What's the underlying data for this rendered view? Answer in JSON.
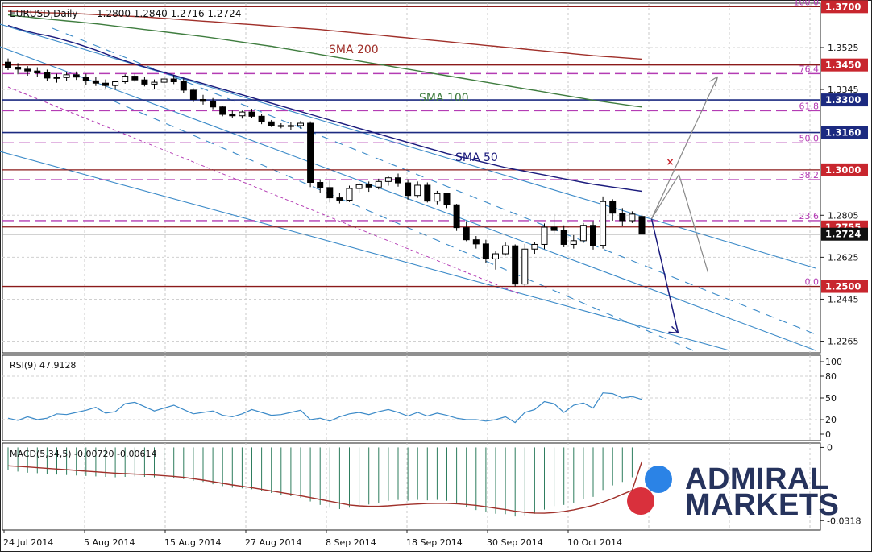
{
  "header": {
    "symbol": "EURUSD,Daily",
    "ohlc": "1.2800 1.2840 1.2716 1.2724"
  },
  "logo": {
    "line1": "ADMIRAL",
    "line2": "MARKETS",
    "dot_top_color": "#2b83e6",
    "dot_bottom_color": "#d9303c"
  },
  "colors": {
    "candle": "#000000",
    "sma50": "#1a1a7c",
    "sma100": "#3f7d3f",
    "sma200": "#a0302a",
    "fib": "#b43cb4",
    "support_resistance": "#8b1a1a",
    "navy_levels": "#1c2a80",
    "channel": "#3b8ac8",
    "rsi": "#3b8ac8",
    "macd_signal": "#a0302a",
    "macd_hist": "#2e7d5e",
    "label_red": "#c8262e",
    "label_blue": "#1c2a80",
    "label_dark": "#111111"
  },
  "chart_data": [
    {
      "type": "candlestick",
      "title": "EURUSD,Daily",
      "x_labels": [
        "24 Jul 2014",
        "5 Aug 2014",
        "15 Aug 2014",
        "27 Aug 2014",
        "8 Sep 2014",
        "18 Sep 2014",
        "30 Sep 2014",
        "10 Oct 2014"
      ],
      "price_ticks": [
        "1.3525",
        "1.3345",
        "1.2805",
        "1.2625",
        "1.2445",
        "1.2265"
      ],
      "ylim": [
        1.2215,
        1.3715
      ],
      "candles": [
        [
          1.3462,
          1.3478,
          1.3428,
          1.344
        ],
        [
          1.344,
          1.3458,
          1.341,
          1.3432
        ],
        [
          1.3432,
          1.3445,
          1.3404,
          1.3424
        ],
        [
          1.3424,
          1.344,
          1.3398,
          1.3416
        ],
        [
          1.3416,
          1.343,
          1.338,
          1.3394
        ],
        [
          1.3394,
          1.3412,
          1.3374,
          1.3396
        ],
        [
          1.3396,
          1.342,
          1.338,
          1.3408
        ],
        [
          1.3408,
          1.3422,
          1.3386,
          1.3398
        ],
        [
          1.3398,
          1.3412,
          1.3366,
          1.3382
        ],
        [
          1.3382,
          1.34,
          1.336,
          1.3372
        ],
        [
          1.3372,
          1.3388,
          1.335,
          1.3362
        ],
        [
          1.3362,
          1.3382,
          1.3344,
          1.3378
        ],
        [
          1.3378,
          1.341,
          1.337,
          1.3402
        ],
        [
          1.3402,
          1.3412,
          1.3378,
          1.3386
        ],
        [
          1.3386,
          1.34,
          1.3358,
          1.3368
        ],
        [
          1.3368,
          1.3388,
          1.3348,
          1.3376
        ],
        [
          1.3376,
          1.3398,
          1.3362,
          1.339
        ],
        [
          1.339,
          1.3406,
          1.3368,
          1.3378
        ],
        [
          1.3378,
          1.3392,
          1.333,
          1.3342
        ],
        [
          1.3342,
          1.335,
          1.329,
          1.3302
        ],
        [
          1.3302,
          1.3322,
          1.328,
          1.3294
        ],
        [
          1.3294,
          1.3308,
          1.326,
          1.327
        ],
        [
          1.327,
          1.3276,
          1.323,
          1.3238
        ],
        [
          1.3238,
          1.3254,
          1.3222,
          1.3232
        ],
        [
          1.3232,
          1.3254,
          1.322,
          1.3248
        ],
        [
          1.3248,
          1.3262,
          1.3222,
          1.323
        ],
        [
          1.323,
          1.324,
          1.3196,
          1.3206
        ],
        [
          1.3206,
          1.3214,
          1.3184,
          1.319
        ],
        [
          1.319,
          1.32,
          1.3178,
          1.3186
        ],
        [
          1.3186,
          1.3204,
          1.3172,
          1.319
        ],
        [
          1.319,
          1.321,
          1.3176,
          1.32
        ],
        [
          1.32,
          1.3208,
          1.2926,
          1.2946
        ],
        [
          1.2946,
          1.296,
          1.29,
          1.2924
        ],
        [
          1.2924,
          1.2954,
          1.286,
          1.288
        ],
        [
          1.288,
          1.29,
          1.2856,
          1.287
        ],
        [
          1.287,
          1.2932,
          1.2862,
          1.292
        ],
        [
          1.292,
          1.2946,
          1.29,
          1.2936
        ],
        [
          1.2936,
          1.295,
          1.2906,
          1.2926
        ],
        [
          1.2926,
          1.2962,
          1.2916,
          1.295
        ],
        [
          1.295,
          1.2974,
          1.2932,
          1.2966
        ],
        [
          1.2966,
          1.2984,
          1.2928,
          1.2944
        ],
        [
          1.2944,
          1.296,
          1.2872,
          1.289
        ],
        [
          1.289,
          1.295,
          1.288,
          1.2934
        ],
        [
          1.2934,
          1.2946,
          1.286,
          1.2866
        ],
        [
          1.2866,
          1.291,
          1.2852,
          1.2898
        ],
        [
          1.2898,
          1.2902,
          1.2836,
          1.285
        ],
        [
          1.285,
          1.2854,
          1.2738,
          1.2752
        ],
        [
          1.2752,
          1.278,
          1.2694,
          1.27
        ],
        [
          1.27,
          1.2716,
          1.2662,
          1.2682
        ],
        [
          1.2682,
          1.27,
          1.26,
          1.2618
        ],
        [
          1.2618,
          1.265,
          1.2572,
          1.264
        ],
        [
          1.264,
          1.2688,
          1.2632,
          1.2674
        ],
        [
          1.2674,
          1.268,
          1.25,
          1.251
        ],
        [
          1.251,
          1.2682,
          1.25,
          1.266
        ],
        [
          1.266,
          1.269,
          1.264,
          1.268
        ],
        [
          1.268,
          1.277,
          1.266,
          1.2754
        ],
        [
          1.2754,
          1.281,
          1.2728,
          1.274
        ],
        [
          1.274,
          1.2762,
          1.2668,
          1.268
        ],
        [
          1.268,
          1.272,
          1.2662,
          1.2696
        ],
        [
          1.2696,
          1.2772,
          1.2686,
          1.2762
        ],
        [
          1.2762,
          1.278,
          1.2658,
          1.2676
        ],
        [
          1.2676,
          1.2886,
          1.2662,
          1.2864
        ],
        [
          1.2864,
          1.2874,
          1.2782,
          1.2814
        ],
        [
          1.2814,
          1.2836,
          1.2758,
          1.2782
        ],
        [
          1.2782,
          1.2822,
          1.2772,
          1.281
        ],
        [
          1.28,
          1.284,
          1.2716,
          1.2724
        ]
      ],
      "series": [
        {
          "name": "SMA 50",
          "values": [
            1.362,
            1.3606,
            1.3594,
            1.3584,
            1.3576,
            1.3566,
            1.3554,
            1.3542,
            1.3528,
            1.3514,
            1.3498,
            1.3482,
            1.3468,
            1.3454,
            1.3442,
            1.343,
            1.3418,
            1.3406,
            1.3394,
            1.3382,
            1.337,
            1.3358,
            1.3346,
            1.3334,
            1.3322,
            1.331,
            1.3298,
            1.3286,
            1.3274,
            1.3262,
            1.325,
            1.3238,
            1.3226,
            1.3214,
            1.3202,
            1.319,
            1.3178,
            1.3166,
            1.3154,
            1.3142,
            1.313,
            1.3118,
            1.3106,
            1.3094,
            1.3082,
            1.307,
            1.306,
            1.305,
            1.304,
            1.303,
            1.302,
            1.301,
            1.3002,
            1.2994,
            1.2986,
            1.2978,
            1.297,
            1.2962,
            1.2954,
            1.2946,
            1.2938,
            1.2932,
            1.2926,
            1.292,
            1.2914,
            1.2908
          ]
        },
        {
          "name": "SMA 100",
          "values": [
            1.3665,
            1.366,
            1.3656,
            1.3651,
            1.3647,
            1.3643,
            1.3639,
            1.3635,
            1.3631,
            1.3627,
            1.3622,
            1.3617,
            1.3612,
            1.3607,
            1.3602,
            1.3597,
            1.3592,
            1.3587,
            1.3582,
            1.3577,
            1.3572,
            1.3566,
            1.356,
            1.3554,
            1.3548,
            1.3542,
            1.3536,
            1.353,
            1.3523,
            1.3516,
            1.3509,
            1.3502,
            1.3495,
            1.3488,
            1.3481,
            1.3474,
            1.3467,
            1.346,
            1.3453,
            1.3446,
            1.3439,
            1.3432,
            1.3425,
            1.3418,
            1.3411,
            1.3404,
            1.3397,
            1.339,
            1.3383,
            1.3376,
            1.3369,
            1.3362,
            1.3355,
            1.3348,
            1.3341,
            1.3334,
            1.3327,
            1.332,
            1.3313,
            1.3306,
            1.3299,
            1.3293,
            1.3287,
            1.3281,
            1.3275,
            1.327
          ]
        },
        {
          "name": "SMA 200",
          "values": [
            1.368,
            1.3679,
            1.3677,
            1.3676,
            1.3674,
            1.3673,
            1.3671,
            1.367,
            1.3668,
            1.3666,
            1.3664,
            1.3662,
            1.366,
            1.3658,
            1.3656,
            1.3653,
            1.365,
            1.3647,
            1.3644,
            1.3641,
            1.3638,
            1.3635,
            1.3632,
            1.3629,
            1.3626,
            1.3623,
            1.362,
            1.3617,
            1.3614,
            1.3611,
            1.3608,
            1.3605,
            1.3602,
            1.3598,
            1.3594,
            1.359,
            1.3586,
            1.3582,
            1.3578,
            1.3574,
            1.357,
            1.3566,
            1.3562,
            1.3558,
            1.3554,
            1.355,
            1.3546,
            1.3542,
            1.3538,
            1.3534,
            1.353,
            1.3526,
            1.3522,
            1.3518,
            1.3514,
            1.351,
            1.3506,
            1.3502,
            1.3498,
            1.3494,
            1.349,
            1.3487,
            1.3484,
            1.3481,
            1.3478,
            1.3475
          ]
        }
      ],
      "levels": [
        {
          "price": 1.37,
          "label": "1.3700",
          "kind": "resistance"
        },
        {
          "price": 1.345,
          "label": "1.3450",
          "kind": "resistance"
        },
        {
          "price": 1.33,
          "label": "1.3300",
          "kind": "navy"
        },
        {
          "price": 1.316,
          "label": "1.3160",
          "kind": "navy"
        },
        {
          "price": 1.3,
          "label": "1.3000",
          "kind": "resistance"
        },
        {
          "price": 1.2755,
          "label": "1.2755",
          "kind": "resistance"
        },
        {
          "price": 1.2724,
          "label": "1.2724",
          "kind": "current"
        },
        {
          "price": 1.25,
          "label": "1.2500",
          "kind": "support"
        }
      ],
      "fibonacci": [
        {
          "label": "100.0",
          "price": 1.37
        },
        {
          "label": "76.4",
          "price": 1.3413
        },
        {
          "label": "61.8",
          "price": 1.3254
        },
        {
          "label": "50.0",
          "price": 1.3116
        },
        {
          "label": "38.2",
          "price": 1.2958
        },
        {
          "label": "23.6",
          "price": 1.2782
        },
        {
          "label": "0.0",
          "price": 1.25
        }
      ],
      "annotations": [
        "SMA 200",
        "SMA 100",
        "SMA 50"
      ]
    },
    {
      "type": "line",
      "title": "RSI(9) 47.9128",
      "ylim": [
        0,
        100
      ],
      "y_ticks": [
        "100",
        "80",
        "50",
        "20",
        "0"
      ],
      "series": [
        {
          "name": "RSI(9)",
          "values": [
            22,
            19,
            24,
            20,
            22,
            28,
            27,
            30,
            33,
            37,
            29,
            31,
            42,
            44,
            38,
            32,
            36,
            40,
            34,
            28,
            30,
            32,
            26,
            24,
            28,
            34,
            30,
            26,
            27,
            30,
            33,
            20,
            22,
            18,
            24,
            28,
            30,
            27,
            31,
            34,
            30,
            25,
            30,
            25,
            29,
            26,
            22,
            20,
            20,
            18,
            20,
            24,
            16,
            30,
            34,
            45,
            42,
            30,
            40,
            43,
            36,
            57,
            56,
            50,
            52,
            48
          ]
        }
      ]
    },
    {
      "type": "bar",
      "title": "MACD(5,34,5) -0.00720 -0.00614",
      "y_ticks": [
        "0",
        "-0.0318"
      ],
      "ylim": [
        -0.0345,
        0.0005
      ],
      "series": [
        {
          "name": "MACD(5,34,5)",
          "values": [
            -0.01,
            -0.0105,
            -0.011,
            -0.0112,
            -0.0115,
            -0.0118,
            -0.012,
            -0.0122,
            -0.0124,
            -0.0126,
            -0.0128,
            -0.013,
            -0.0128,
            -0.0126,
            -0.0128,
            -0.013,
            -0.0132,
            -0.0134,
            -0.0138,
            -0.0145,
            -0.015,
            -0.016,
            -0.0168,
            -0.0175,
            -0.0178,
            -0.0182,
            -0.019,
            -0.0198,
            -0.0205,
            -0.0212,
            -0.0218,
            -0.0235,
            -0.025,
            -0.0262,
            -0.0268,
            -0.0262,
            -0.0255,
            -0.0248,
            -0.024,
            -0.0232,
            -0.0228,
            -0.0232,
            -0.0228,
            -0.023,
            -0.0228,
            -0.0232,
            -0.0245,
            -0.026,
            -0.0272,
            -0.0282,
            -0.0288,
            -0.029,
            -0.03,
            -0.0295,
            -0.0288,
            -0.027,
            -0.0255,
            -0.025,
            -0.024,
            -0.0225,
            -0.0215,
            -0.0185,
            -0.0165,
            -0.015,
            -0.013,
            -0.0072
          ]
        },
        {
          "name": "Signal",
          "values": [
            -0.008,
            -0.0082,
            -0.0085,
            -0.0088,
            -0.0091,
            -0.0094,
            -0.0097,
            -0.01,
            -0.0103,
            -0.0106,
            -0.0109,
            -0.0112,
            -0.0114,
            -0.0116,
            -0.0118,
            -0.012,
            -0.0123,
            -0.0126,
            -0.013,
            -0.0136,
            -0.0142,
            -0.0149,
            -0.0156,
            -0.0163,
            -0.0169,
            -0.0175,
            -0.0182,
            -0.0189,
            -0.0196,
            -0.0203,
            -0.021,
            -0.0218,
            -0.0226,
            -0.0234,
            -0.0242,
            -0.025,
            -0.0254,
            -0.0256,
            -0.0256,
            -0.0254,
            -0.0251,
            -0.0248,
            -0.0246,
            -0.0244,
            -0.0243,
            -0.0243,
            -0.0245,
            -0.0248,
            -0.0252,
            -0.0258,
            -0.0264,
            -0.027,
            -0.0277,
            -0.0282,
            -0.0285,
            -0.0286,
            -0.0283,
            -0.0278,
            -0.0271,
            -0.0262,
            -0.0252,
            -0.0238,
            -0.0222,
            -0.0204,
            -0.0186,
            -0.0061
          ]
        }
      ]
    }
  ]
}
